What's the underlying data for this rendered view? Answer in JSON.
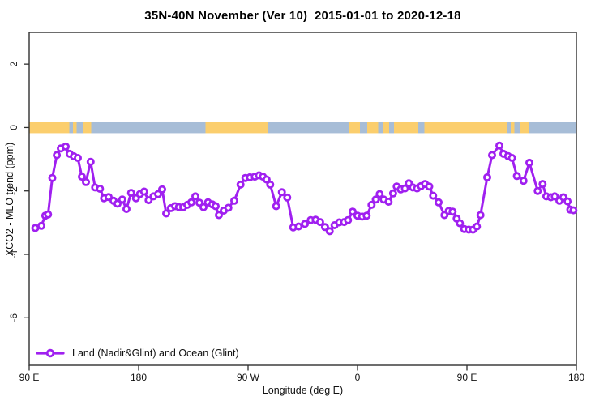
{
  "title": "35N-40N November (Ver 10)  2015-01-01 to 2020-12-18",
  "legend": {
    "position": "bottom-left",
    "marker": "open-circle-on-line",
    "entries": [
      {
        "label": "Land (Nadir&Glint) and Ocean (Glint)",
        "color": "#A020F0"
      }
    ]
  },
  "colors": {
    "series": "#A020F0",
    "marker_fill": "#ffffff",
    "land": "#FBCE6D",
    "ocean": "#A7BDD7",
    "axis": "#2f2f2f",
    "text": "#111111"
  },
  "chart_data": {
    "type": "line",
    "title": "35N-40N November (Ver 10)  2015-01-01 to 2020-12-18",
    "xlabel": "Longitude (deg E)",
    "ylabel": "XCO2 - MLO trend (ppm)",
    "xlim": [
      90,
      540
    ],
    "ylim": [
      -7.5,
      3
    ],
    "grid": false,
    "x_ticks": [
      {
        "pos": 90,
        "label": "90 E"
      },
      {
        "pos": 180,
        "label": "180"
      },
      {
        "pos": 270,
        "label": "90 W"
      },
      {
        "pos": 360,
        "label": "0"
      },
      {
        "pos": 450,
        "label": "90 E"
      },
      {
        "pos": 540,
        "label": "180"
      }
    ],
    "y_ticks": [
      {
        "pos": 2,
        "label": "2"
      },
      {
        "pos": 0,
        "label": "0"
      },
      {
        "pos": -2,
        "label": "-2"
      },
      {
        "pos": -4,
        "label": "-4"
      },
      {
        "pos": -6,
        "label": "-6"
      }
    ],
    "surface_band": {
      "note_visual": "land/ocean strip drawn at y=0",
      "y_center": 0,
      "segments": [
        {
          "from": 90,
          "to": 123,
          "surface": "land"
        },
        {
          "from": 123,
          "to": 126,
          "surface": "ocean"
        },
        {
          "from": 126,
          "to": 129,
          "surface": "land"
        },
        {
          "from": 129,
          "to": 134,
          "surface": "ocean"
        },
        {
          "from": 134,
          "to": 141,
          "surface": "land"
        },
        {
          "from": 141,
          "to": 235,
          "surface": "ocean"
        },
        {
          "from": 235,
          "to": 286,
          "surface": "land"
        },
        {
          "from": 286,
          "to": 353,
          "surface": "ocean"
        },
        {
          "from": 353,
          "to": 362,
          "surface": "land"
        },
        {
          "from": 362,
          "to": 368,
          "surface": "ocean"
        },
        {
          "from": 368,
          "to": 377,
          "surface": "land"
        },
        {
          "from": 377,
          "to": 381,
          "surface": "ocean"
        },
        {
          "from": 381,
          "to": 386,
          "surface": "land"
        },
        {
          "from": 386,
          "to": 390,
          "surface": "ocean"
        },
        {
          "from": 390,
          "to": 410,
          "surface": "land"
        },
        {
          "from": 410,
          "to": 415,
          "surface": "ocean"
        },
        {
          "from": 415,
          "to": 483,
          "surface": "land"
        },
        {
          "from": 483,
          "to": 486,
          "surface": "ocean"
        },
        {
          "from": 486,
          "to": 489,
          "surface": "land"
        },
        {
          "from": 489,
          "to": 494,
          "surface": "ocean"
        },
        {
          "from": 494,
          "to": 501,
          "surface": "land"
        },
        {
          "from": 501,
          "to": 540,
          "surface": "ocean"
        }
      ]
    },
    "series": [
      {
        "name": "Land (Nadir&Glint) and Ocean (Glint)",
        "color": "#A020F0",
        "marker": "open-circle",
        "points": [
          [
            95,
            -3.17
          ],
          [
            100,
            -3.1
          ],
          [
            103.3,
            -2.78
          ],
          [
            105.5,
            -2.74
          ],
          [
            109,
            -1.59
          ],
          [
            112.7,
            -0.87
          ],
          [
            116,
            -0.66
          ],
          [
            120,
            -0.6
          ],
          [
            123.3,
            -0.83
          ],
          [
            126.7,
            -0.91
          ],
          [
            130,
            -0.96
          ],
          [
            133.3,
            -1.55
          ],
          [
            136.7,
            -1.72
          ],
          [
            140.5,
            -1.08
          ],
          [
            144.2,
            -1.89
          ],
          [
            148.2,
            -1.93
          ],
          [
            151.5,
            -2.23
          ],
          [
            155.3,
            -2.19
          ],
          [
            159.3,
            -2.31
          ],
          [
            162.7,
            -2.4
          ],
          [
            166.5,
            -2.27
          ],
          [
            170,
            -2.57
          ],
          [
            173.8,
            -2.06
          ],
          [
            177.8,
            -2.23
          ],
          [
            181.1,
            -2.1
          ],
          [
            184.5,
            -2.02
          ],
          [
            188.2,
            -2.29
          ],
          [
            192.2,
            -2.17
          ],
          [
            196,
            -2.1
          ],
          [
            199.3,
            -1.95
          ],
          [
            202.7,
            -2.71
          ],
          [
            206.5,
            -2.54
          ],
          [
            210,
            -2.48
          ],
          [
            213.1,
            -2.51
          ],
          [
            216.7,
            -2.51
          ],
          [
            220,
            -2.44
          ],
          [
            223.3,
            -2.36
          ],
          [
            226.7,
            -2.17
          ],
          [
            230,
            -2.37
          ],
          [
            233.3,
            -2.51
          ],
          [
            237.1,
            -2.36
          ],
          [
            240.5,
            -2.42
          ],
          [
            243.3,
            -2.48
          ],
          [
            246,
            -2.76
          ],
          [
            250,
            -2.62
          ],
          [
            253.8,
            -2.53
          ],
          [
            258.7,
            -2.31
          ],
          [
            263.8,
            -1.8
          ],
          [
            267.8,
            -1.59
          ],
          [
            271.5,
            -1.57
          ],
          [
            275.5,
            -1.55
          ],
          [
            279,
            -1.51
          ],
          [
            282.2,
            -1.55
          ],
          [
            285.3,
            -1.64
          ],
          [
            288.2,
            -1.8
          ],
          [
            293.1,
            -2.48
          ],
          [
            297.8,
            -2.04
          ],
          [
            302.2,
            -2.21
          ],
          [
            307.1,
            -3.15
          ],
          [
            311.5,
            -3.12
          ],
          [
            316.7,
            -3.04
          ],
          [
            321.5,
            -2.92
          ],
          [
            325.5,
            -2.91
          ],
          [
            329.3,
            -2.98
          ],
          [
            333.3,
            -3.14
          ],
          [
            337.1,
            -3.27
          ],
          [
            341.1,
            -3.08
          ],
          [
            345,
            -2.99
          ],
          [
            349,
            -2.98
          ],
          [
            352.2,
            -2.92
          ],
          [
            356,
            -2.65
          ],
          [
            360,
            -2.78
          ],
          [
            363.8,
            -2.81
          ],
          [
            367.5,
            -2.78
          ],
          [
            371.5,
            -2.44
          ],
          [
            375,
            -2.27
          ],
          [
            378.2,
            -2.1
          ],
          [
            381.5,
            -2.27
          ],
          [
            385.5,
            -2.34
          ],
          [
            389.3,
            -2.08
          ],
          [
            392.2,
            -1.86
          ],
          [
            395.5,
            -1.95
          ],
          [
            399,
            -1.92
          ],
          [
            402.2,
            -1.76
          ],
          [
            405.5,
            -1.89
          ],
          [
            409,
            -1.92
          ],
          [
            412.2,
            -1.85
          ],
          [
            415.5,
            -1.78
          ],
          [
            419,
            -1.86
          ],
          [
            422.2,
            -2.15
          ],
          [
            426.7,
            -2.36
          ],
          [
            431.5,
            -2.76
          ],
          [
            435,
            -2.63
          ],
          [
            438.2,
            -2.65
          ],
          [
            441.5,
            -2.87
          ],
          [
            444.2,
            -3.02
          ],
          [
            447.8,
            -3.2
          ],
          [
            451.5,
            -3.22
          ],
          [
            455,
            -3.22
          ],
          [
            458.2,
            -3.12
          ],
          [
            461.1,
            -2.76
          ],
          [
            466.7,
            -1.57
          ],
          [
            470.7,
            -0.87
          ],
          [
            476.7,
            -0.57
          ],
          [
            480,
            -0.83
          ],
          [
            483.8,
            -0.9
          ],
          [
            487.1,
            -0.96
          ],
          [
            491.1,
            -1.53
          ],
          [
            496.5,
            -1.68
          ],
          [
            501.3,
            -1.11
          ],
          [
            508.2,
            -2.0
          ],
          [
            512.2,
            -1.78
          ],
          [
            515.3,
            -2.17
          ],
          [
            519,
            -2.2
          ],
          [
            522.2,
            -2.17
          ],
          [
            526,
            -2.31
          ],
          [
            529.3,
            -2.2
          ],
          [
            532.7,
            -2.33
          ],
          [
            535,
            -2.59
          ],
          [
            537.5,
            -2.61
          ]
        ]
      }
    ],
    "legend": {
      "position": "bottom-left",
      "entries": [
        "Land (Nadir&Glint) and Ocean (Glint)"
      ]
    }
  }
}
